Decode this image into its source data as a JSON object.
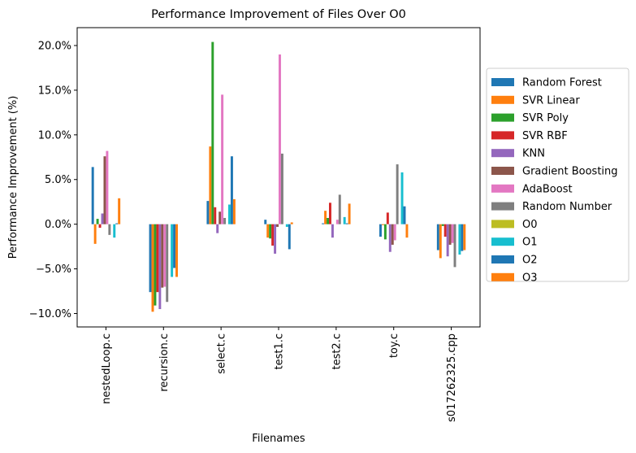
{
  "chart_data": {
    "type": "bar",
    "title": "Performance Improvement of Files Over O0",
    "xlabel": "Filenames",
    "ylabel": "Performance Improvement (%)",
    "ylim": [
      -11.5,
      22
    ],
    "yticks": [
      -10,
      -5,
      0,
      5,
      10,
      15,
      20
    ],
    "ytick_labels": [
      "−10.0%",
      "−5.0%",
      "0.0%",
      "5.0%",
      "10.0%",
      "15.0%",
      "20.0%"
    ],
    "grid": false,
    "legend_position": "center-right (outside plot)",
    "categories": [
      "nestedLoop.c",
      "recursion.c",
      "select.c",
      "test1.c",
      "test2.c",
      "toy.c",
      "s017262325.cpp"
    ],
    "series": [
      {
        "name": "Random Forest",
        "color": "#1f77b4",
        "values": [
          6.4,
          -7.6,
          2.6,
          0.5,
          0.1,
          -1.4,
          -2.9
        ]
      },
      {
        "name": "SVR Linear",
        "color": "#ff7f0e",
        "values": [
          -2.2,
          -9.8,
          8.7,
          -1.5,
          1.5,
          -0.1,
          -3.8
        ]
      },
      {
        "name": "SVR Poly",
        "color": "#2ca02c",
        "values": [
          0.6,
          -9.1,
          20.4,
          -1.6,
          0.7,
          -1.7,
          -0.2
        ]
      },
      {
        "name": "SVR RBF",
        "color": "#d62728",
        "values": [
          -0.4,
          -7.6,
          1.9,
          -2.4,
          2.4,
          1.3,
          -1.4
        ]
      },
      {
        "name": "KNN",
        "color": "#9467bd",
        "values": [
          1.2,
          -9.5,
          -1.0,
          -3.3,
          -1.5,
          -3.1,
          -3.6
        ]
      },
      {
        "name": "Gradient Boosting",
        "color": "#8c564b",
        "values": [
          7.6,
          -7.1,
          1.4,
          -0.3,
          0.0,
          -2.3,
          -2.3
        ]
      },
      {
        "name": "AdaBoost",
        "color": "#e377c2",
        "values": [
          8.2,
          -7.0,
          14.5,
          19.0,
          0.5,
          -1.8,
          -2.1
        ]
      },
      {
        "name": "Random Number",
        "color": "#7f7f7f",
        "values": [
          -1.2,
          -8.7,
          0.7,
          7.9,
          3.3,
          6.7,
          -4.8
        ]
      },
      {
        "name": "O0",
        "color": "#bcbd22",
        "values": [
          0.0,
          0.0,
          0.0,
          0.0,
          0.0,
          0.0,
          0.0
        ]
      },
      {
        "name": "O1",
        "color": "#17becf",
        "values": [
          -1.5,
          -5.9,
          2.2,
          -0.3,
          0.8,
          5.8,
          -3.4
        ]
      },
      {
        "name": "O2",
        "color": "#1f77b4",
        "values": [
          0.1,
          -4.9,
          7.6,
          -2.8,
          0.1,
          2.0,
          -3.0
        ]
      },
      {
        "name": "O3",
        "color": "#ff7f0e",
        "values": [
          2.9,
          -5.9,
          2.8,
          0.2,
          2.3,
          -1.5,
          -2.9
        ]
      }
    ]
  }
}
